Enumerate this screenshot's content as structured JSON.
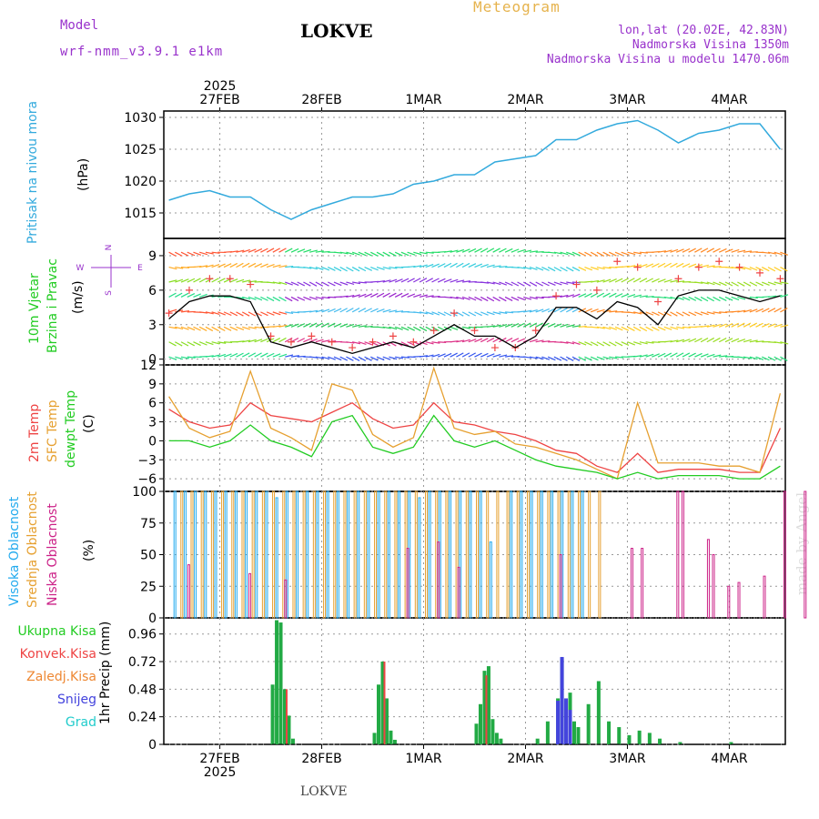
{
  "header": {
    "model_label": "Model",
    "model_value": "wrf-nmm_v3.9.1 e1km",
    "title": "LOKVE",
    "meteogram_label": "Meteogram",
    "coords": "lon,lat (20.02E, 42.83N)",
    "elevation": "Nadmorska Visina 1350m",
    "model_elevation": "Nadmorska Visina u modelu 1470.06m"
  },
  "footer": {
    "station": "LOKVE",
    "watermark": "made by Angel"
  },
  "time_axis": {
    "top_year": "2025",
    "bottom_year": "2025",
    "date_labels": [
      "27FEB",
      "28FEB",
      "1MAR",
      "2MAR",
      "3MAR",
      "4MAR"
    ]
  },
  "panels": {
    "pressure": {
      "label": "Pritisak na nivou mora",
      "unit": "(hPa)"
    },
    "wind": {
      "label_line1": "10m Vjetar",
      "label_line2": "Brzina i Pravac",
      "unit": "(m/s)",
      "compass_n": "N",
      "compass_w": "W",
      "compass_e": "E",
      "compass_s": "S"
    },
    "temp": {
      "label_2m": "2m Temp",
      "label_sfc": "SFC Temp",
      "label_dewpt": "dewpt Temp",
      "unit": "(C)"
    },
    "cloud": {
      "label_high": "Visoka Oblacnost",
      "label_mid": "Srednja Oblacnost",
      "label_low": "Niska Oblacnost",
      "unit": "(%)"
    },
    "precip": {
      "label": "1hr Precip (mm)",
      "legend": [
        "Ukupna Kisa",
        "Konvek.Kisa",
        "Zaledj.Kisa",
        "Snijeg",
        "Grad"
      ]
    }
  },
  "colors": {
    "pressure": "#33aadd",
    "wind_speed": "#000000",
    "wind_gust": "#ee4444",
    "temp_2m": "#ee4444",
    "temp_sfc": "#e6a030",
    "temp_dewpt": "#22cc22",
    "cloud_high": "#22aaee",
    "cloud_mid": "#e6a030",
    "cloud_low": "#cc2288",
    "precip_total": "#22aa44",
    "precip_conv": "#ee4444",
    "precip_frz": "#ee8833",
    "precip_snow": "#4444dd",
    "precip_hail": "#22cccc",
    "label_purple": "#9933cc"
  },
  "chart_data": [
    {
      "type": "line",
      "title": "Pritisak na nivou mora",
      "ylabel": "(hPa)",
      "x_unit": "days from 27FEB 00:00",
      "ylim": [
        1011,
        1031
      ],
      "yticks": [
        1015,
        1020,
        1025,
        1030
      ],
      "series": [
        {
          "name": "Pritisak na nivou mora",
          "x": [
            -0.5,
            -0.3,
            -0.1,
            0.1,
            0.3,
            0.5,
            0.7,
            0.9,
            1.1,
            1.3,
            1.5,
            1.7,
            1.9,
            2.1,
            2.3,
            2.5,
            2.7,
            2.9,
            3.1,
            3.3,
            3.5,
            3.7,
            3.9,
            4.1,
            4.3,
            4.5,
            4.7,
            4.9,
            5.1,
            5.3,
            5.5
          ],
          "y": [
            1017,
            1018,
            1018.5,
            1017.5,
            1017.5,
            1015.5,
            1014,
            1015.5,
            1016.5,
            1017.5,
            1017.5,
            1018,
            1019.5,
            1020,
            1021,
            1021,
            1023,
            1023.5,
            1024,
            1026.5,
            1026.5,
            1028,
            1029,
            1029.5,
            1028,
            1026,
            1027.5,
            1028,
            1029,
            1029,
            1025
          ]
        }
      ]
    },
    {
      "type": "line",
      "title": "10m Vjetar Brzina i Pravac",
      "ylabel": "(m/s)",
      "x_unit": "days from 27FEB 00:00",
      "ylim": [
        -0.5,
        10.5
      ],
      "yticks": [
        0,
        3,
        6,
        9
      ],
      "series": [
        {
          "name": "wind speed",
          "x": [
            -0.5,
            -0.3,
            -0.1,
            0.1,
            0.3,
            0.5,
            0.7,
            0.9,
            1.1,
            1.3,
            1.5,
            1.7,
            1.9,
            2.1,
            2.3,
            2.5,
            2.7,
            2.9,
            3.1,
            3.3,
            3.5,
            3.7,
            3.9,
            4.1,
            4.3,
            4.5,
            4.7,
            4.9,
            5.1,
            5.3,
            5.5
          ],
          "y": [
            3.5,
            5,
            5.5,
            5.5,
            5,
            1.5,
            1,
            1.5,
            1,
            0.5,
            1,
            1.5,
            1,
            2,
            3,
            2,
            2,
            1,
            2,
            4.5,
            4.5,
            3.5,
            5,
            4.5,
            3,
            5.5,
            6,
            6,
            5.5,
            5,
            5.5
          ]
        },
        {
          "name": "wind gust",
          "x": [
            -0.5,
            -0.3,
            -0.1,
            0.1,
            0.3,
            0.5,
            0.7,
            0.9,
            1.1,
            1.3,
            1.5,
            1.7,
            1.9,
            2.1,
            2.3,
            2.5,
            2.7,
            2.9,
            3.1,
            3.3,
            3.5,
            3.7,
            3.9,
            4.1,
            4.3,
            4.5,
            4.7,
            4.9,
            5.1,
            5.3,
            5.5
          ],
          "y": [
            4,
            6,
            7,
            7,
            6.5,
            2,
            1.5,
            2,
            1.5,
            1,
            1.5,
            2,
            1.5,
            2.5,
            4,
            2.5,
            1,
            1,
            2.5,
            5.5,
            6.5,
            6,
            8.5,
            8,
            5,
            7,
            8,
            8.5,
            8,
            7.5,
            7
          ]
        }
      ]
    },
    {
      "type": "line",
      "title": "Temperature",
      "ylabel": "(C)",
      "x_unit": "days from 27FEB 00:00",
      "ylim": [
        -8,
        12
      ],
      "yticks": [
        -6,
        -3,
        0,
        3,
        6,
        9,
        12
      ],
      "series": [
        {
          "name": "2m Temp",
          "x": [
            -0.5,
            -0.3,
            -0.1,
            0.1,
            0.3,
            0.5,
            0.7,
            0.9,
            1.1,
            1.3,
            1.5,
            1.7,
            1.9,
            2.1,
            2.3,
            2.5,
            2.7,
            2.9,
            3.1,
            3.3,
            3.5,
            3.7,
            3.9,
            4.1,
            4.3,
            4.5,
            4.7,
            4.9,
            5.1,
            5.3,
            5.5
          ],
          "y": [
            5,
            3,
            2,
            2.5,
            6,
            4,
            3.5,
            3,
            4.5,
            6,
            3.5,
            2,
            2.5,
            6,
            3,
            2.5,
            1.5,
            1,
            0,
            -1.5,
            -2,
            -4,
            -5,
            -2,
            -5,
            -4.5,
            -4.5,
            -4.5,
            -5,
            -5,
            2
          ]
        },
        {
          "name": "SFC Temp",
          "x": [
            -0.5,
            -0.3,
            -0.1,
            0.1,
            0.3,
            0.5,
            0.7,
            0.9,
            1.1,
            1.3,
            1.5,
            1.7,
            1.9,
            2.1,
            2.3,
            2.5,
            2.7,
            2.9,
            3.1,
            3.3,
            3.5,
            3.7,
            3.9,
            4.1,
            4.3,
            4.5,
            4.7,
            4.9,
            5.1,
            5.3,
            5.5
          ],
          "y": [
            7,
            2,
            0.5,
            1.5,
            11,
            2,
            0.5,
            -1.5,
            9,
            8,
            1,
            -1,
            0.5,
            11.5,
            2,
            1,
            1.5,
            -0.5,
            -1,
            -2,
            -3,
            -4.5,
            -6,
            6,
            -3.5,
            -3.5,
            -3.5,
            -4,
            -4,
            -5,
            7.5
          ]
        },
        {
          "name": "dewpt Temp",
          "x": [
            -0.5,
            -0.3,
            -0.1,
            0.1,
            0.3,
            0.5,
            0.7,
            0.9,
            1.1,
            1.3,
            1.5,
            1.7,
            1.9,
            2.1,
            2.3,
            2.5,
            2.7,
            2.9,
            3.1,
            3.3,
            3.5,
            3.7,
            3.9,
            4.1,
            4.3,
            4.5,
            4.7,
            4.9,
            5.1,
            5.3,
            5.5
          ],
          "y": [
            0,
            0,
            -1,
            0,
            2.5,
            0,
            -1,
            -2.5,
            3,
            4,
            -1,
            -2,
            -1,
            4,
            0,
            -1,
            0,
            -1.5,
            -3,
            -4,
            -4.5,
            -5,
            -6,
            -5,
            -6,
            -5.5,
            -5.5,
            -5.5,
            -6,
            -6,
            -4
          ]
        }
      ]
    },
    {
      "type": "bar",
      "title": "Oblacnost",
      "ylabel": "(%)",
      "x_unit": "days from 27FEB 00:00",
      "ylim": [
        0,
        100
      ],
      "yticks": [
        0,
        25,
        50,
        75,
        100
      ],
      "series": [
        {
          "name": "Visoka Oblacnost",
          "x": [
            -0.45,
            -0.35,
            -0.25,
            -0.15,
            -0.05,
            0.05,
            0.15,
            0.25,
            0.35,
            0.45,
            0.55,
            0.65,
            0.75,
            0.85,
            0.95,
            1.05,
            1.15,
            1.25,
            1.35,
            1.45,
            1.55,
            1.65,
            1.75,
            1.85,
            1.95,
            2.05,
            2.15,
            2.25,
            2.35,
            2.45,
            2.55,
            2.65,
            2.75,
            2.85,
            2.95,
            3.05,
            3.15,
            3.25,
            3.35,
            3.45,
            3.55
          ],
          "y": [
            100,
            100,
            100,
            100,
            100,
            100,
            100,
            100,
            100,
            100,
            95,
            100,
            100,
            100,
            100,
            100,
            100,
            100,
            100,
            100,
            100,
            100,
            100,
            100,
            95,
            100,
            100,
            100,
            100,
            100,
            100,
            60,
            0,
            100,
            100,
            100,
            100,
            100,
            100,
            100,
            100
          ]
        },
        {
          "name": "Srednja Oblacnost",
          "x": [
            -0.4,
            -0.3,
            -0.2,
            -0.1,
            0.0,
            0.1,
            0.2,
            0.3,
            0.4,
            0.5,
            0.6,
            0.7,
            0.8,
            0.9,
            1.0,
            1.1,
            1.2,
            1.3,
            1.4,
            1.5,
            1.6,
            1.7,
            1.8,
            1.9,
            2.0,
            2.1,
            2.2,
            2.3,
            2.4,
            2.5,
            2.6,
            2.7,
            2.8,
            2.9,
            3.0,
            3.1,
            3.2,
            3.3,
            3.4,
            3.5,
            3.6,
            3.7
          ],
          "y": [
            100,
            100,
            100,
            100,
            100,
            100,
            100,
            100,
            100,
            100,
            100,
            100,
            100,
            100,
            100,
            100,
            100,
            100,
            100,
            100,
            100,
            100,
            100,
            100,
            100,
            100,
            100,
            100,
            100,
            100,
            100,
            100,
            100,
            100,
            100,
            100,
            100,
            100,
            100,
            100,
            100,
            100
          ]
        },
        {
          "name": "Niska Oblacnost",
          "x": [
            -0.35,
            0.25,
            0.6,
            1.8,
            2.1,
            2.3,
            3.3,
            4.0,
            4.1,
            4.45,
            4.5,
            4.75,
            4.8,
            4.95,
            5.05,
            5.3,
            5.5,
            5.7,
            5.85,
            6.1,
            6.4,
            6.55
          ],
          "y": [
            42,
            35,
            30,
            55,
            60,
            40,
            50,
            55,
            55,
            100,
            100,
            62,
            50,
            25,
            28,
            33,
            100,
            100,
            100,
            100,
            100,
            100
          ]
        }
      ]
    },
    {
      "type": "bar",
      "title": "1hr Precip (mm)",
      "ylabel": "1hr Precip (mm)",
      "x_unit": "days from 27FEB 00:00",
      "ylim": [
        0,
        1.1
      ],
      "yticks": [
        0,
        0.24,
        0.48,
        0.72,
        0.96
      ],
      "series": [
        {
          "name": "Ukupna Kisa",
          "x": [
            0.5,
            0.54,
            0.58,
            0.62,
            0.66,
            0.7,
            1.5,
            1.54,
            1.58,
            1.62,
            1.66,
            1.7,
            2.5,
            2.54,
            2.58,
            2.62,
            2.66,
            2.7,
            2.74,
            3.1,
            3.2,
            3.3,
            3.34,
            3.38,
            3.42,
            3.46,
            3.5,
            3.6,
            3.7,
            3.8,
            3.9,
            4.0,
            4.1,
            4.2,
            4.3,
            4.5,
            5.0
          ],
          "y": [
            0.52,
            1.08,
            1.06,
            0.48,
            0.25,
            0.05,
            0.1,
            0.52,
            0.72,
            0.4,
            0.12,
            0.04,
            0.18,
            0.35,
            0.64,
            0.68,
            0.22,
            0.1,
            0.05,
            0.05,
            0.2,
            0.4,
            0.75,
            0.38,
            0.45,
            0.2,
            0.15,
            0.35,
            0.55,
            0.2,
            0.15,
            0.08,
            0.12,
            0.1,
            0.05,
            0.02,
            0.02
          ]
        },
        {
          "name": "Konvek.Kisa",
          "x": [
            0.62,
            1.58,
            2.58
          ],
          "y": [
            0.48,
            0.72,
            0.6
          ]
        },
        {
          "name": "Snijeg",
          "x": [
            3.3,
            3.34,
            3.38,
            3.42
          ],
          "y": [
            0.38,
            0.76,
            0.4,
            0.3
          ]
        }
      ]
    }
  ]
}
